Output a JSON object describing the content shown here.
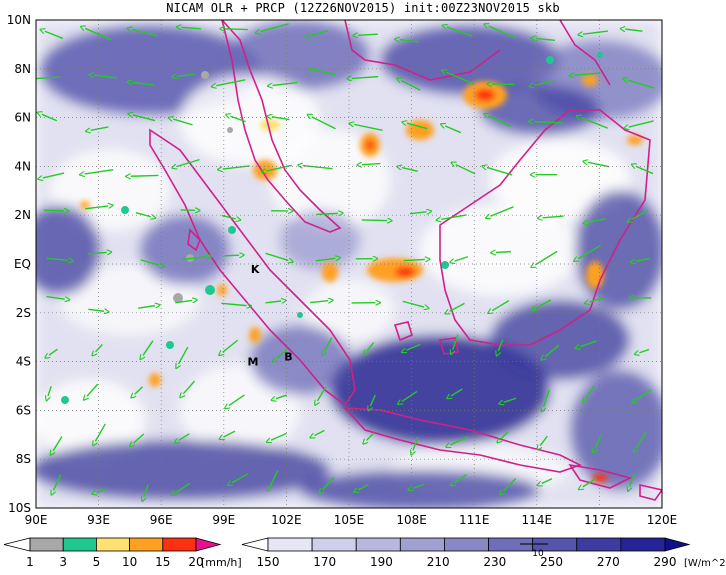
{
  "title": "NICAM OLR + PRCP (12Z26NOV2015) init:00Z23NOV2015 skb",
  "map": {
    "lat_labels": [
      "10N",
      "8N",
      "6N",
      "4N",
      "2N",
      "EQ",
      "2S",
      "4S",
      "6S",
      "8S",
      "10S"
    ],
    "lon_labels": [
      "90E",
      "93E",
      "96E",
      "99E",
      "102E",
      "105E",
      "108E",
      "111E",
      "114E",
      "117E",
      "120E"
    ],
    "place_markers": [
      {
        "letter": "K",
        "lon": 100.5,
        "lat": -0.2
      },
      {
        "letter": "M",
        "lon": 100.4,
        "lat": -4.0
      },
      {
        "letter": "B",
        "lon": 102.1,
        "lat": -3.8
      }
    ]
  },
  "precip_colorbar": {
    "ticks": [
      "1",
      "3",
      "5",
      "10",
      "15",
      "20"
    ],
    "unit": "[mm/h]",
    "colors": [
      "#ffffff",
      "#a8a8a8",
      "#20c890",
      "#ffe070",
      "#ffa020",
      "#ff3010",
      "#e8108e"
    ]
  },
  "olr_colorbar": {
    "ticks": [
      "150",
      "170",
      "190",
      "210",
      "230",
      "250",
      "270",
      "290"
    ],
    "unit": "[W/m^2]",
    "colors": [
      "#ffffff",
      "#e6e6f4",
      "#cfcfe9",
      "#b8b8de",
      "#a0a0d2",
      "#8888c6",
      "#6e6eba",
      "#5555ae",
      "#3c3ca2",
      "#242496",
      "#10108a"
    ]
  },
  "wind_reference_label": "10"
}
